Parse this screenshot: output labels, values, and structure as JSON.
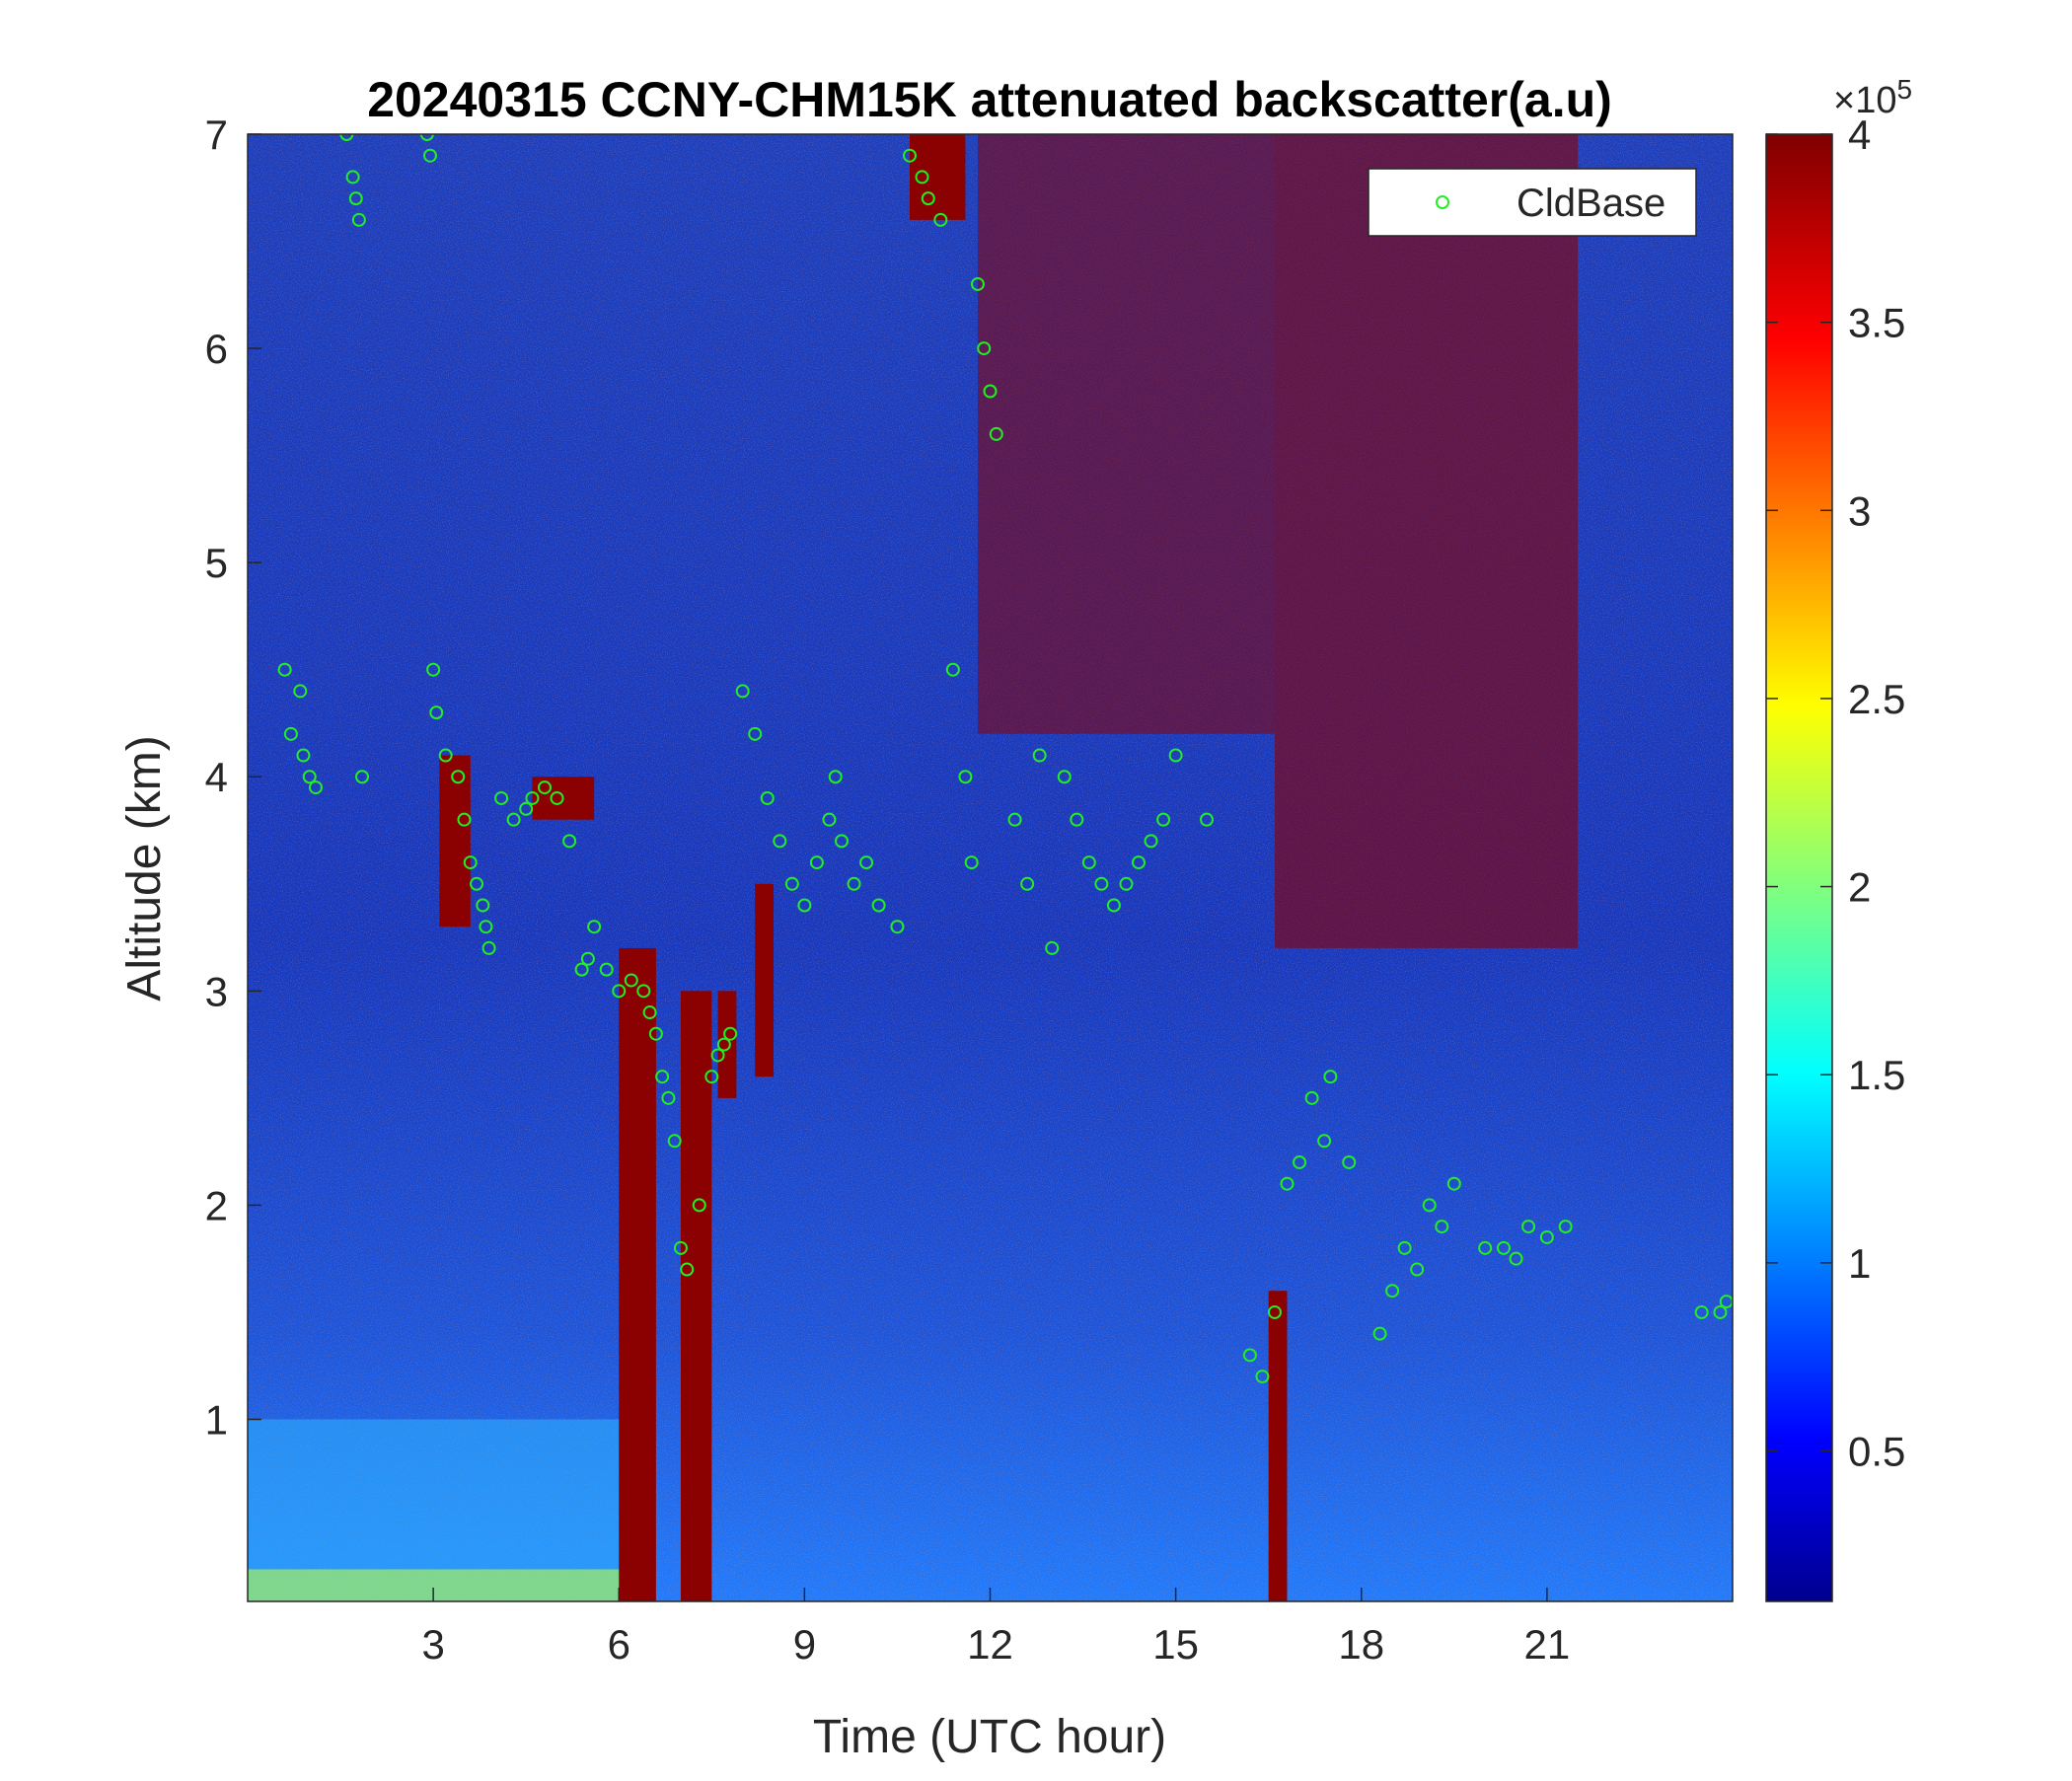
{
  "chart_data": {
    "type": "heatmap",
    "title": "20240315 CCNY-CHM15K attenuated backscatter(a.u)",
    "xlabel": "Time (UTC hour)",
    "ylabel": "Altitude (km)",
    "xlim": [
      0,
      24
    ],
    "ylim": [
      0.15,
      7
    ],
    "x_ticks": [
      3,
      6,
      9,
      12,
      15,
      18,
      21
    ],
    "y_ticks": [
      1,
      2,
      3,
      4,
      5,
      6,
      7
    ],
    "colorbar": {
      "range": [
        0.1,
        4
      ],
      "ticks": [
        0.5,
        1,
        1.5,
        2,
        2.5,
        3,
        3.5,
        4
      ],
      "multiplier": "×10",
      "exponent": "5",
      "colormap": "jet"
    },
    "colors": {
      "background_field": "#1a3fbf",
      "cloud_saturated": "#8b0000",
      "cloud_base_marker": "#22ee22"
    },
    "legend": {
      "label": "CldBase",
      "position": "top-right"
    },
    "series": [
      {
        "name": "CldBase",
        "type": "scatter",
        "x": [
          0.6,
          0.7,
          0.85,
          0.9,
          1.0,
          1.1,
          1.6,
          1.7,
          1.75,
          1.8,
          1.85,
          2.9,
          2.95,
          3.0,
          3.05,
          3.2,
          3.4,
          3.5,
          3.6,
          3.7,
          3.8,
          3.85,
          3.9,
          4.1,
          4.3,
          4.5,
          4.6,
          4.8,
          5.0,
          5.2,
          5.4,
          5.5,
          5.6,
          5.8,
          6.0,
          6.2,
          6.4,
          6.5,
          6.6,
          6.7,
          6.8,
          6.9,
          7.0,
          7.1,
          7.3,
          7.5,
          7.6,
          7.7,
          7.8,
          8.0,
          8.2,
          8.4,
          8.6,
          8.8,
          9.0,
          9.2,
          9.4,
          9.5,
          9.6,
          9.8,
          10.0,
          10.2,
          10.5,
          10.7,
          10.9,
          11.0,
          11.2,
          11.4,
          11.6,
          11.7,
          11.8,
          11.9,
          12.0,
          12.1,
          12.4,
          12.6,
          12.8,
          13.0,
          13.2,
          13.4,
          13.6,
          13.8,
          14.0,
          14.2,
          14.4,
          14.6,
          14.8,
          15.0,
          15.5,
          16.2,
          16.4,
          16.6,
          16.8,
          17.0,
          17.2,
          17.4,
          17.5,
          17.8,
          18.3,
          18.5,
          18.7,
          18.9,
          19.1,
          19.3,
          19.5,
          20.0,
          20.3,
          20.5,
          20.7,
          21.0,
          21.3,
          23.5,
          23.8,
          23.9
        ],
        "y": [
          4.5,
          4.2,
          4.4,
          4.1,
          4.0,
          3.95,
          7.0,
          6.8,
          6.7,
          6.6,
          4.0,
          7.0,
          6.9,
          4.5,
          4.3,
          4.1,
          4.0,
          3.8,
          3.6,
          3.5,
          3.4,
          3.3,
          3.2,
          3.9,
          3.8,
          3.85,
          3.9,
          3.95,
          3.9,
          3.7,
          3.1,
          3.15,
          3.3,
          3.1,
          3.0,
          3.05,
          3.0,
          2.9,
          2.8,
          2.6,
          2.5,
          2.3,
          1.8,
          1.7,
          2.0,
          2.6,
          2.7,
          2.75,
          2.8,
          4.4,
          4.2,
          3.9,
          3.7,
          3.5,
          3.4,
          3.6,
          3.8,
          4.0,
          3.7,
          3.5,
          3.6,
          3.4,
          3.3,
          6.9,
          6.8,
          6.7,
          6.6,
          4.5,
          4.0,
          3.6,
          6.3,
          6.0,
          5.8,
          5.6,
          3.8,
          3.5,
          4.1,
          3.2,
          4.0,
          3.8,
          3.6,
          3.5,
          3.4,
          3.5,
          3.6,
          3.7,
          3.8,
          4.1,
          3.8,
          1.3,
          1.2,
          1.5,
          2.1,
          2.2,
          2.5,
          2.3,
          2.6,
          2.2,
          1.4,
          1.6,
          1.8,
          1.7,
          2.0,
          1.9,
          2.1,
          1.8,
          1.8,
          1.75,
          1.9,
          1.85,
          1.9,
          1.5,
          1.5,
          1.55
        ]
      }
    ]
  }
}
